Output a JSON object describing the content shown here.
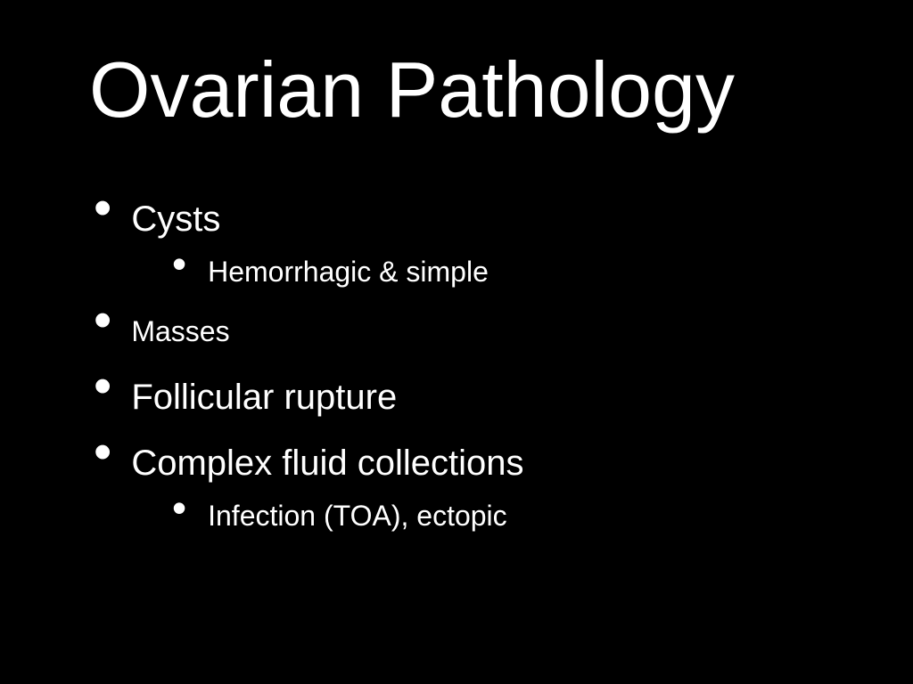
{
  "slide": {
    "title": "Ovarian Pathology",
    "background_color": "#000000",
    "text_color": "#ffffff",
    "title_fontsize": 88,
    "body_fontsize_level1": 40,
    "body_fontsize_level1_smaller": 32,
    "body_fontsize_level2": 32,
    "bullets": {
      "item1": {
        "text": "Cysts"
      },
      "item1_sub1": {
        "text": "Hemorrhagic & simple"
      },
      "item2": {
        "text": "Masses"
      },
      "item3": {
        "text": "Follicular rupture"
      },
      "item4": {
        "text": "Complex fluid collections"
      },
      "item4_sub1": {
        "text": "Infection (TOA), ectopic"
      }
    }
  }
}
